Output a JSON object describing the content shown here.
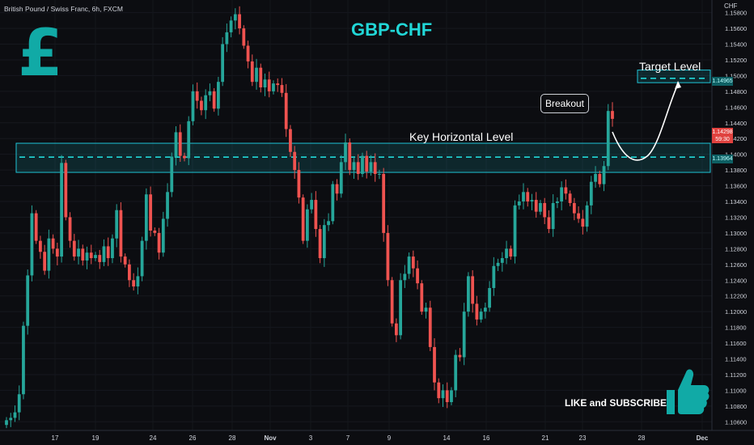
{
  "symbol": "British Pound / Swiss Franc, 6h, FXCM",
  "currency": "CHF",
  "title": "GBP-CHF",
  "pound_sign": "£",
  "like_text": "LIKE and SUBSCRIBE",
  "annotations": {
    "key_level": "Key Horizontal Level",
    "target_level": "Target Level",
    "breakout": "Breakout"
  },
  "price_labels": {
    "target": "1.14965",
    "key": "1.13964",
    "current": "1.14298",
    "countdown": "59:30"
  },
  "colors": {
    "up": "#26a69a",
    "down": "#ef5350",
    "accent": "#21d7d7",
    "zone": "#1fc4d6",
    "background": "#0c0d11"
  },
  "chart_data": {
    "type": "candlestick",
    "y_ticks": [
      "1.15800",
      "1.15600",
      "1.15400",
      "1.15200",
      "1.15000",
      "1.14800",
      "1.14600",
      "1.14400",
      "1.14200",
      "1.14000",
      "1.13800",
      "1.13600",
      "1.13400",
      "1.13200",
      "1.13000",
      "1.12800",
      "1.12600",
      "1.12400",
      "1.12200",
      "1.12000",
      "1.11800",
      "1.11600",
      "1.11400",
      "1.11200",
      "1.11000",
      "1.10800",
      "1.10600"
    ],
    "ylim": [
      1.1049,
      1.1594
    ],
    "x_ticks": [
      "17",
      "19",
      "24",
      "26",
      "28",
      "Nov",
      "3",
      "7",
      "9",
      "14",
      "16",
      "21",
      "23",
      "28",
      "Dec"
    ],
    "key_zone": {
      "low": 1.1377,
      "high": 1.1414,
      "level": 1.13964
    },
    "target_zone": {
      "low": 1.1491,
      "high": 1.1507,
      "level": 1.14965
    },
    "breakout_price": 1.14298,
    "closes": [
      1.1062,
      1.1065,
      1.1072,
      1.1095,
      1.1182,
      1.1246,
      1.1325,
      1.129,
      1.1276,
      1.1252,
      1.1293,
      1.128,
      1.127,
      1.1389,
      1.132,
      1.129,
      1.127,
      1.128,
      1.1265,
      1.1275,
      1.1268,
      1.1272,
      1.1263,
      1.1283,
      1.1268,
      1.1293,
      1.1329,
      1.127,
      1.126,
      1.124,
      1.1232,
      1.1245,
      1.129,
      1.1349,
      1.1303,
      1.13,
      1.1275,
      1.1318,
      1.1352,
      1.1397,
      1.1428,
      1.1398,
      1.1395,
      1.1442,
      1.148,
      1.1468,
      1.1456,
      1.1475,
      1.148,
      1.1458,
      1.1492,
      1.154,
      1.1555,
      1.157,
      1.1578,
      1.156,
      1.1538,
      1.1518,
      1.1492,
      1.151,
      1.1485,
      1.1495,
      1.148,
      1.149,
      1.1488,
      1.1478,
      1.1432,
      1.1403,
      1.138,
      1.1345,
      1.129,
      1.133,
      1.1342,
      1.1305,
      1.1268,
      1.131,
      1.1315,
      1.1362,
      1.135,
      1.139,
      1.1415,
      1.138,
      1.139,
      1.1375,
      1.1398,
      1.1378,
      1.139,
      1.1375,
      1.1375,
      1.13,
      1.124,
      1.1185,
      1.117,
      1.124,
      1.1248,
      1.127,
      1.1255,
      1.1236,
      1.12,
      1.1205,
      1.1155,
      1.111,
      1.109,
      1.11,
      1.1085,
      1.11,
      1.1145,
      1.1142,
      1.12,
      1.1245,
      1.121,
      1.119,
      1.12,
      1.1205,
      1.123,
      1.1258,
      1.1262,
      1.1268,
      1.128,
      1.127,
      1.1335,
      1.134,
      1.1352,
      1.134,
      1.1342,
      1.1327,
      1.1338,
      1.132,
      1.1305,
      1.1338,
      1.134,
      1.1358,
      1.135,
      1.1338,
      1.1325,
      1.1318,
      1.1308,
      1.1335,
      1.1365,
      1.1375,
      1.1362,
      1.1385,
      1.1455,
      1.1445
    ],
    "closes_note": ""
  }
}
